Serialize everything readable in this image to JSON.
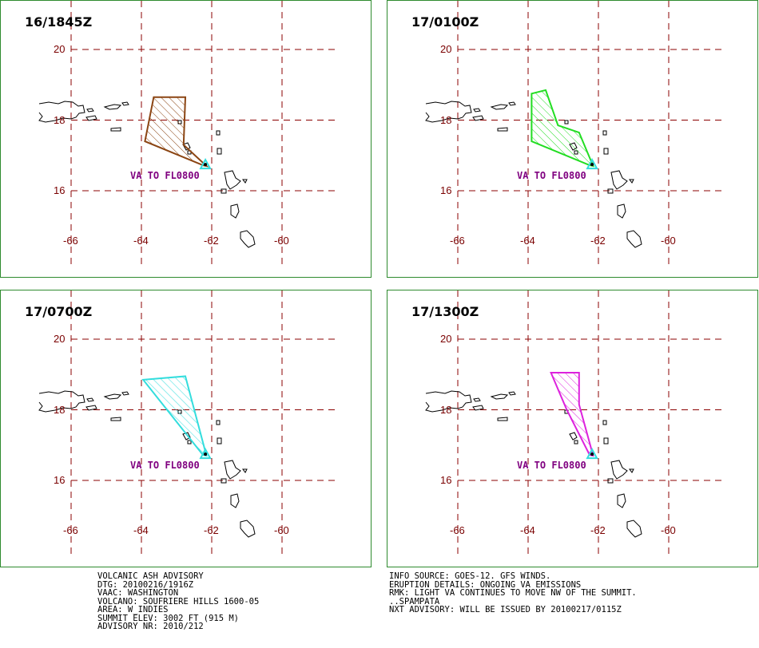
{
  "panels": [
    {
      "time": "16/1845Z",
      "va_label": "VA TO FL0800",
      "polygon_color": "#8b4513",
      "polygon_lonlat": [
        [
          -63.65,
          18.65
        ],
        [
          -62.75,
          18.65
        ],
        [
          -62.8,
          17.3
        ],
        [
          -62.15,
          16.7
        ],
        [
          -62.25,
          16.72
        ],
        [
          -63.9,
          17.4
        ]
      ]
    },
    {
      "time": "17/0100Z",
      "va_label": "VA TO FL0800",
      "polygon_color": "#22dd22",
      "polygon_lonlat": [
        [
          -63.9,
          18.75
        ],
        [
          -63.5,
          18.85
        ],
        [
          -63.15,
          17.85
        ],
        [
          -62.55,
          17.65
        ],
        [
          -62.15,
          16.7
        ],
        [
          -62.25,
          16.72
        ],
        [
          -63.9,
          17.4
        ]
      ]
    },
    {
      "time": "17/0700Z",
      "va_label": "VA TO FL0800",
      "polygon_color": "#33dddd",
      "polygon_lonlat": [
        [
          -63.95,
          18.85
        ],
        [
          -62.75,
          18.95
        ],
        [
          -62.15,
          16.7
        ],
        [
          -62.25,
          16.72
        ]
      ]
    },
    {
      "time": "17/1300Z",
      "va_label": "VA TO FL0800",
      "polygon_color": "#dd22dd",
      "polygon_lonlat": [
        [
          -63.35,
          19.05
        ],
        [
          -62.55,
          19.05
        ],
        [
          -62.55,
          18.15
        ],
        [
          -62.15,
          16.7
        ],
        [
          -62.25,
          16.72
        ],
        [
          -62.9,
          18.0
        ],
        [
          -63.35,
          19.05
        ]
      ]
    }
  ],
  "grid": {
    "lat_labels": [
      "20",
      "18",
      "16"
    ],
    "lon_labels": [
      "-66",
      "-64",
      "-62",
      "-60"
    ]
  },
  "volcano_marker_color": "#33dddd",
  "advisory_left": [
    "VOLCANIC ASH ADVISORY",
    "DTG: 20100216/1916Z",
    "VAAC: WASHINGTON",
    "VOLCANO: SOUFRIERE HILLS 1600-05",
    "AREA: W_INDIES",
    "SUMMIT ELEV: 3002 FT (915 M)",
    "ADVISORY NR: 2010/212"
  ],
  "advisory_right": [
    "INFO SOURCE: GOES-12. GFS WINDS.",
    "ERUPTION DETAILS: ONGOING VA EMISSIONS",
    "RMK: LIGHT VA CONTINUES TO MOVE NW OF THE SUMMIT.",
    "..SPAMPATA",
    "NXT ADVISORY: WILL BE ISSUED BY 20100217/0115Z"
  ]
}
